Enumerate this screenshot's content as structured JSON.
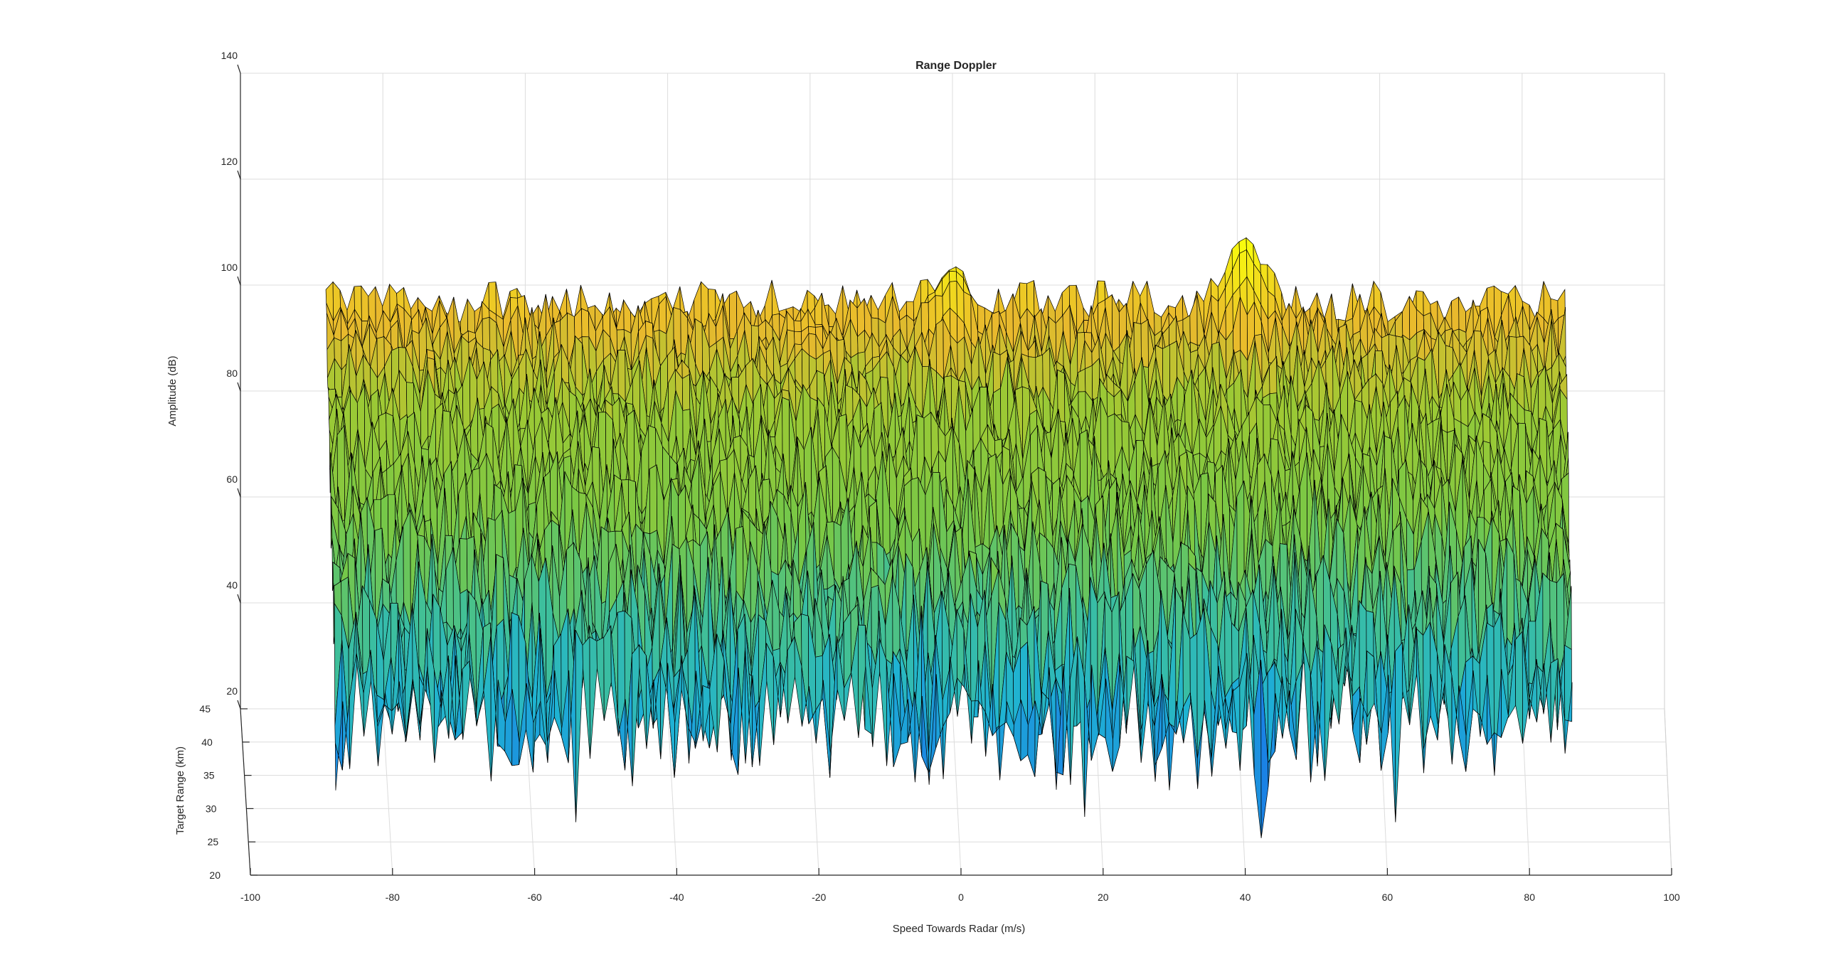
{
  "chart_data": {
    "type": "surface",
    "title": "Range Doppler",
    "xlabel": "Speed Towards Radar (m/s)",
    "ylabel": "Target Range (km)",
    "zlabel": "Amplitude (dB)",
    "xlim": [
      -100,
      100
    ],
    "ylim": [
      20,
      45
    ],
    "zlim": [
      20,
      140
    ],
    "xticks": [
      "-100",
      "-80",
      "-60",
      "-40",
      "-20",
      "0",
      "20",
      "40",
      "60",
      "80",
      "100"
    ],
    "yticks": [
      "20",
      "25",
      "30",
      "35",
      "40",
      "45"
    ],
    "zticks": [
      "20",
      "40",
      "60",
      "80",
      "100",
      "120",
      "140"
    ],
    "grid": true,
    "colormap": "parula",
    "surface_extent": {
      "x": [
        -88,
        86
      ],
      "range_rows_km": [
        20,
        45
      ]
    },
    "baseline_levels_db": {
      "near_range_floor": 36,
      "near_range_noise_top": 62,
      "far_range_noise_top": 101
    },
    "peaks": [
      {
        "speed": -20,
        "range_km": 42,
        "amplitude_db": 96
      },
      {
        "speed": 0,
        "range_km": 44,
        "amplitude_db": 104
      },
      {
        "speed": 41,
        "range_km": 45,
        "amplitude_db": 109
      }
    ],
    "deep_dips": [
      {
        "speed": -54,
        "amplitude_db": 30
      },
      {
        "speed": 17,
        "amplitude_db": 31
      },
      {
        "speed": 42,
        "amplitude_db": 27
      },
      {
        "speed": 61,
        "amplitude_db": 30
      }
    ]
  }
}
